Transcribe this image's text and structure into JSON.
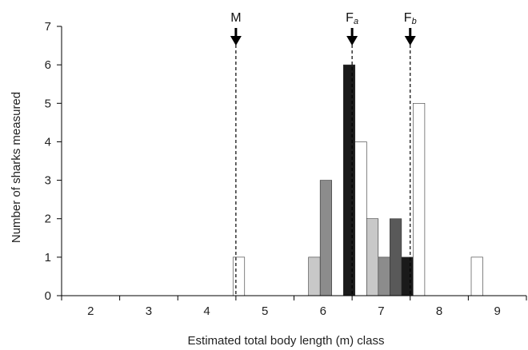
{
  "chart_data": {
    "type": "bar",
    "xlabel": "Estimated total body length (m) class",
    "ylabel": "Number of sharks measured",
    "ylim": [
      0,
      7
    ],
    "yticks": [
      "0",
      "1",
      "2",
      "3",
      "4",
      "5",
      "6",
      "7"
    ],
    "categories": [
      "2",
      "3",
      "4",
      "5",
      "6",
      "7",
      "8",
      "9"
    ],
    "grid": false,
    "legend": "none",
    "bars": [
      {
        "x": 4.55,
        "value": 1,
        "color": "#ffffff"
      },
      {
        "x": 5.85,
        "value": 1,
        "color": "#c8c8c8"
      },
      {
        "x": 6.05,
        "value": 3,
        "color": "#8c8c8c"
      },
      {
        "x": 6.45,
        "value": 6,
        "color": "#1a1a1a"
      },
      {
        "x": 6.65,
        "value": 4,
        "color": "#ffffff"
      },
      {
        "x": 6.85,
        "value": 2,
        "color": "#c8c8c8"
      },
      {
        "x": 7.05,
        "value": 1,
        "color": "#8c8c8c"
      },
      {
        "x": 7.25,
        "value": 2,
        "color": "#595959"
      },
      {
        "x": 7.45,
        "value": 1,
        "color": "#1a1a1a"
      },
      {
        "x": 7.65,
        "value": 5,
        "color": "#ffffff"
      },
      {
        "x": 8.65,
        "value": 1,
        "color": "#ffffff"
      }
    ],
    "markers": [
      {
        "label": "M",
        "sub": "",
        "x": 4.5
      },
      {
        "label": "F",
        "sub": "a",
        "x": 6.5
      },
      {
        "label": "F",
        "sub": "b",
        "x": 7.5
      }
    ]
  }
}
